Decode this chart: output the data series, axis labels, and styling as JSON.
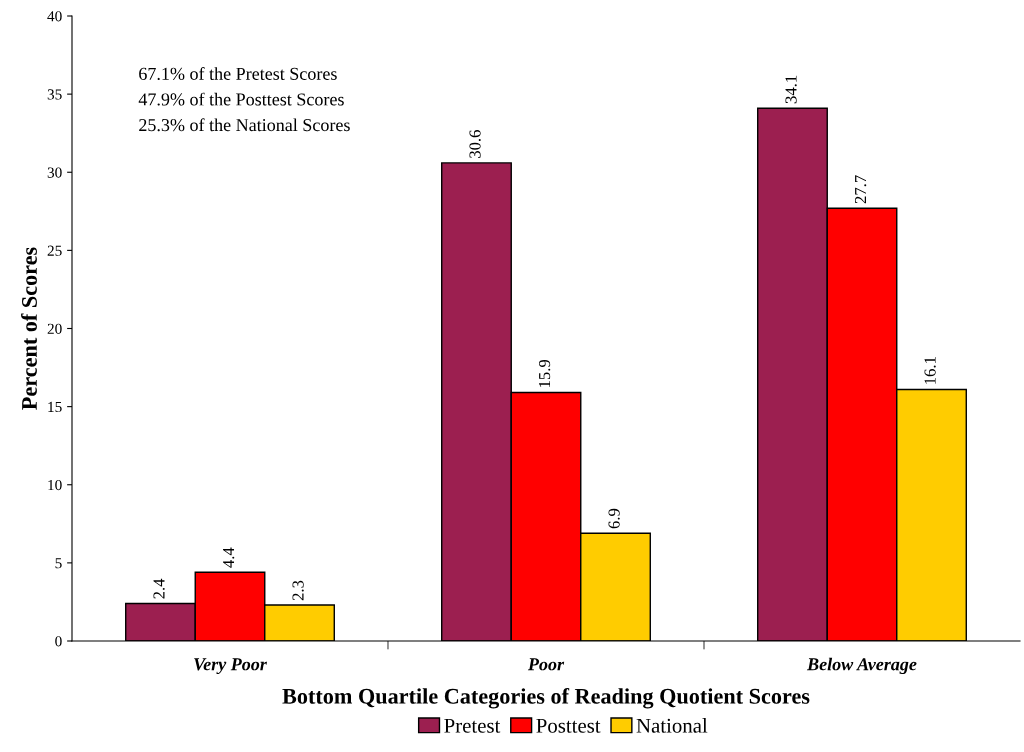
{
  "chart_data": {
    "type": "bar",
    "xlabel": "Bottom Quartile Categories of Reading Quotient Scores",
    "ylabel": "Percent of Scores",
    "categories": [
      "Very Poor",
      "Poor",
      "Below Average"
    ],
    "series": [
      {
        "name": "Pretest",
        "color": "#9c1f50",
        "values": [
          2.4,
          30.6,
          34.1
        ]
      },
      {
        "name": "Posttest",
        "color": "#ff0000",
        "values": [
          4.4,
          15.9,
          27.7
        ]
      },
      {
        "name": "National",
        "color": "#ffcc00",
        "values": [
          2.3,
          6.9,
          16.1
        ]
      }
    ],
    "ylim": [
      0,
      40
    ],
    "yticks": [
      0,
      5,
      10,
      15,
      20,
      25,
      30,
      35,
      40
    ],
    "grid": false,
    "legend": "bottom",
    "data_labels": true,
    "annotations": [
      "67.1% of the Pretest Scores",
      "47.9% of the Posttest Scores",
      "25.3% of the National Scores"
    ]
  }
}
